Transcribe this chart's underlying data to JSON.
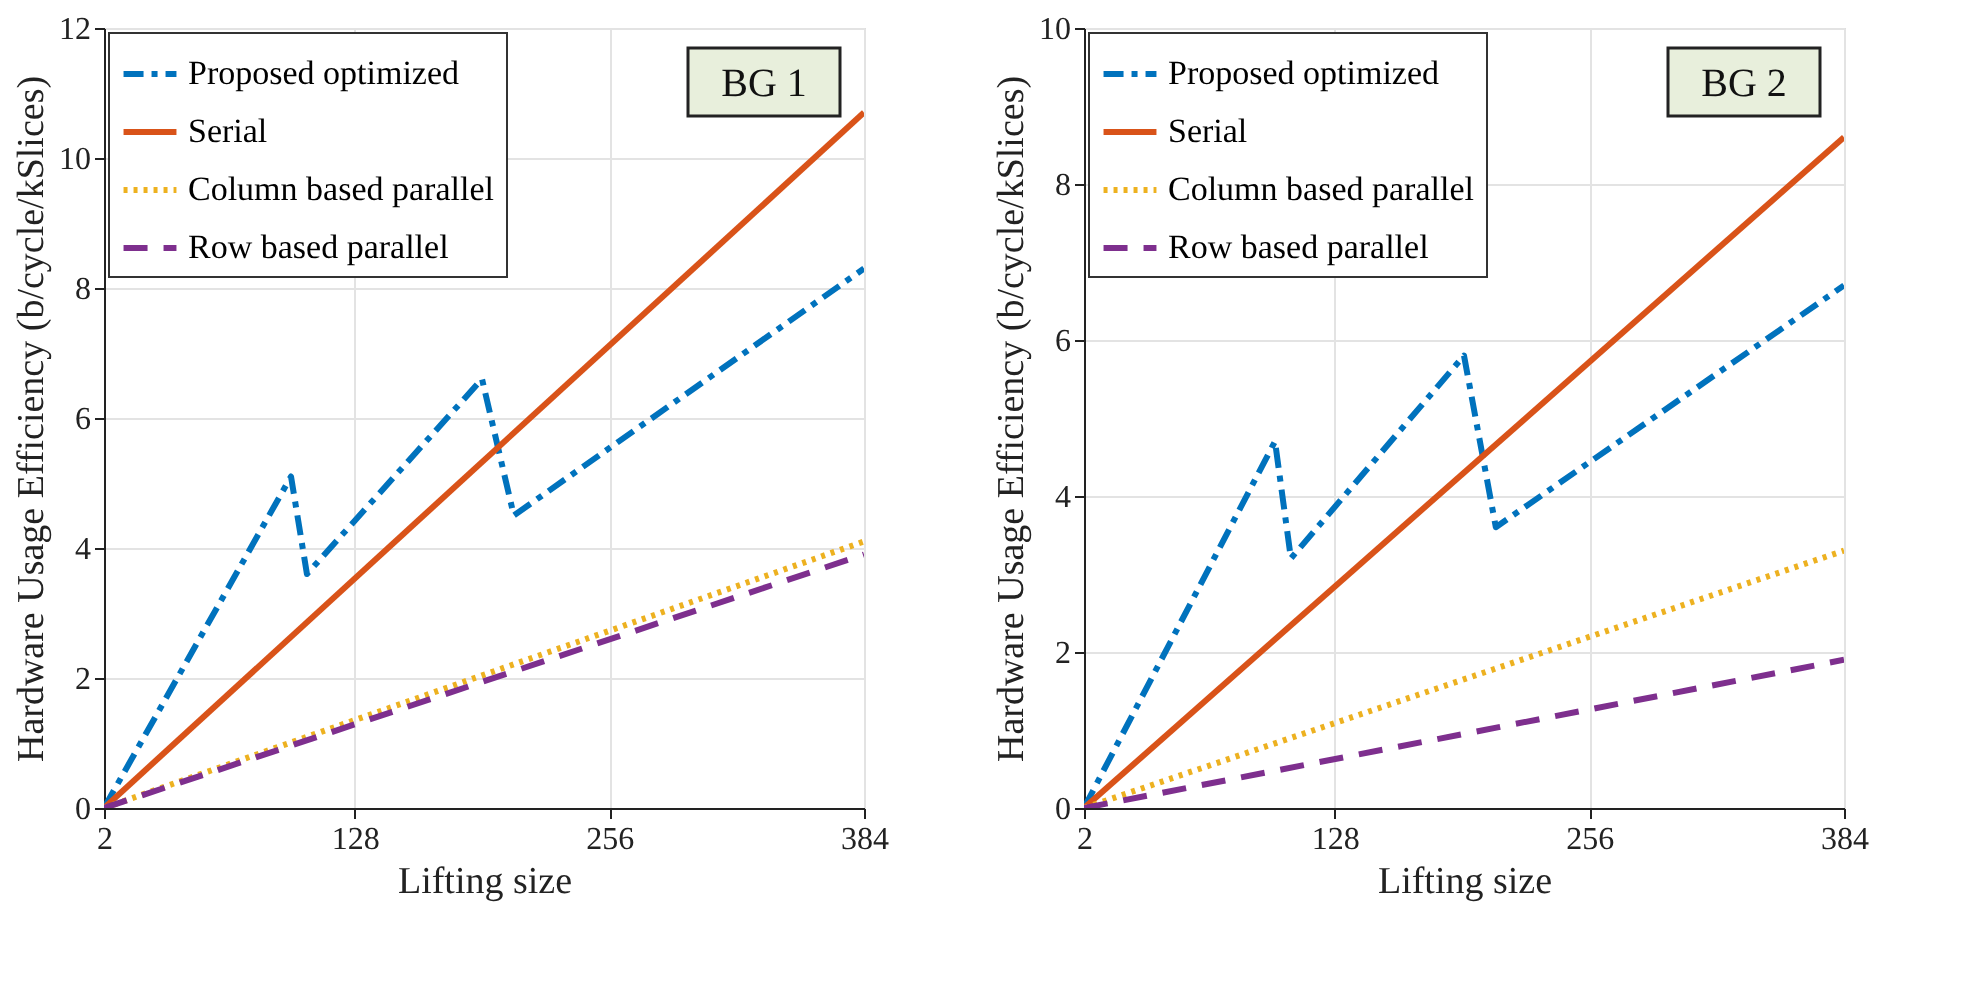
{
  "chart_data": [
    {
      "type": "line",
      "annotations": [
        "BG 1"
      ],
      "xlabel": "Lifting size",
      "ylabel": "Hardware Usage Efficiency (b/cycle/kSlices)",
      "xlim": [
        2,
        384
      ],
      "xticks": [
        2,
        128,
        256,
        384
      ],
      "ylim": [
        0,
        12
      ],
      "yticks": [
        0,
        2,
        4,
        6,
        8,
        10,
        12
      ],
      "grid": true,
      "legend": "top left",
      "series": [
        {
          "name": "Proposed optimized",
          "color": "#0072bd",
          "line_style": "dashdot",
          "x": [
            2,
            96,
            104,
            192,
            208,
            384
          ],
          "values": [
            0,
            5.1,
            3.6,
            6.6,
            4.5,
            8.3
          ]
        },
        {
          "name": "Serial",
          "color": "#d95319",
          "line_style": "solid",
          "x": [
            2,
            384
          ],
          "values": [
            0,
            10.7
          ]
        },
        {
          "name": "Column based parallel",
          "color": "#edb120",
          "line_style": "dotted",
          "x": [
            2,
            384
          ],
          "values": [
            0,
            4.1
          ]
        },
        {
          "name": "Row based parallel",
          "color": "#7e2f8e",
          "line_style": "dashed",
          "x": [
            2,
            384
          ],
          "values": [
            0,
            3.9
          ]
        }
      ]
    },
    {
      "type": "line",
      "annotations": [
        "BG 2"
      ],
      "xlabel": "Lifting size",
      "ylabel": "Hardware Usage Efficiency (b/cycle/kSlices)",
      "xlim": [
        2,
        384
      ],
      "xticks": [
        2,
        128,
        256,
        384
      ],
      "ylim": [
        0,
        10
      ],
      "yticks": [
        0,
        2,
        4,
        6,
        8,
        10
      ],
      "grid": true,
      "legend": "top left",
      "series": [
        {
          "name": "Proposed optimized",
          "color": "#0072bd",
          "line_style": "dashdot",
          "x": [
            2,
            98,
            106,
            193,
            209,
            384
          ],
          "values": [
            0,
            4.7,
            3.2,
            5.8,
            3.6,
            6.7
          ]
        },
        {
          "name": "Serial",
          "color": "#d95319",
          "line_style": "solid",
          "x": [
            2,
            384
          ],
          "values": [
            0,
            8.6
          ]
        },
        {
          "name": "Column based parallel",
          "color": "#edb120",
          "line_style": "dotted",
          "x": [
            2,
            384
          ],
          "values": [
            0,
            3.3
          ]
        },
        {
          "name": "Row based parallel",
          "color": "#7e2f8e",
          "line_style": "dashed",
          "x": [
            2,
            384
          ],
          "values": [
            0,
            1.9
          ]
        }
      ]
    }
  ]
}
